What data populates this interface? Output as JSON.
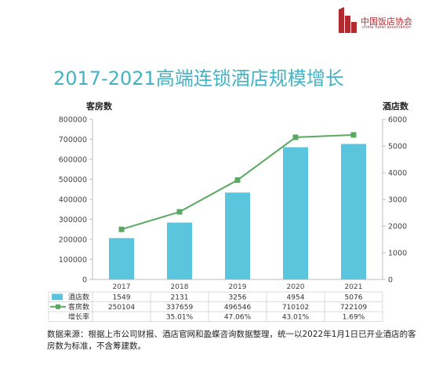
{
  "logo": {
    "name_cn": "中国饭店协会",
    "name_en": "china hotel association"
  },
  "title": "2017-2021高端连锁酒店规模增长",
  "colors": {
    "bar": "#5bc5dd",
    "line": "#5aa862",
    "title": "#43b3c4",
    "logo": "#b02a30"
  },
  "chart_data": {
    "type": "bar",
    "title": "2017-2021高端连锁酒店规模增长",
    "categories": [
      "2017",
      "2018",
      "2019",
      "2020",
      "2021"
    ],
    "y_left_label": "客房数",
    "y_right_label": "酒店数",
    "y_left_ticks": [
      "800000",
      "700000",
      "600000",
      "500000",
      "400000",
      "300000",
      "200000",
      "100000",
      "0"
    ],
    "y_right_ticks": [
      "6000",
      "5000",
      "4000",
      "3000",
      "2000",
      "1000",
      "0"
    ],
    "ylim_left": [
      0,
      800000
    ],
    "ylim_right": [
      0,
      6000
    ],
    "grid": false,
    "series": [
      {
        "name": "酒店数",
        "type": "bar",
        "axis": "right",
        "values": [
          1549,
          2131,
          3256,
          4954,
          5076
        ],
        "labels": [
          "1549",
          "2131",
          "3256",
          "4954",
          "5076"
        ]
      },
      {
        "name": "客房数",
        "type": "line",
        "axis": "left",
        "values": [
          250104,
          337659,
          496546,
          710102,
          722109
        ],
        "labels": [
          "250104",
          "337659",
          "496546",
          "710102",
          "722109"
        ]
      },
      {
        "name": "增长率",
        "type": "table",
        "values": [
          "",
          "35.01%",
          "47.06%",
          "43.01%",
          "1.69%"
        ]
      }
    ]
  },
  "source": "数据来源：根据上市公司财报、酒店官网和盈蝶咨询数据整理，统一以2022年1月1日已开业酒店的客房数为标准，不含筹建数。"
}
